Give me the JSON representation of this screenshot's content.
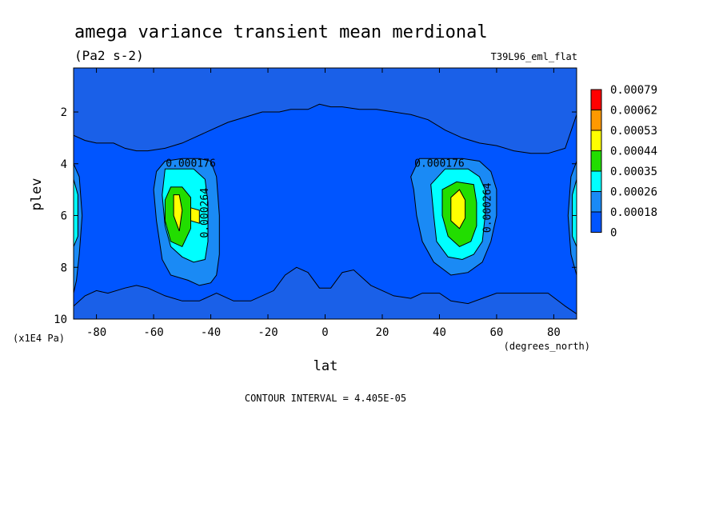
{
  "header": {
    "title": "amega variance transient mean merdional",
    "units": "(Pa2 s-2)",
    "experiment": "T39L96_eml_flat"
  },
  "footer": {
    "contour_interval": "CONTOUR INTERVAL = 4.405E-05"
  },
  "colors": {
    "background_fill": "#1a60e8",
    "level_colors": [
      "#0055ff",
      "#1a8af5",
      "#00ffff",
      "#22dd00",
      "#ffff00",
      "#ff9900",
      "#ff0000"
    ]
  },
  "chart_data": {
    "type": "heatmap",
    "subtype": "filled-contour",
    "title": "amega variance transient mean merdional",
    "xlabel": "lat",
    "x_units": "(degrees_north)",
    "ylabel": "plev",
    "y_units": "(x1E4 Pa)",
    "xlim": [
      -88,
      88
    ],
    "ylim": [
      10,
      0.3
    ],
    "y_inverted": true,
    "xticks": [
      -80,
      -60,
      -40,
      -20,
      0,
      20,
      40,
      60,
      80
    ],
    "yticks": [
      2,
      4,
      6,
      8,
      10
    ],
    "colorbar": {
      "labels": [
        "0.00079",
        "0.00062",
        "0.00053",
        "0.00044",
        "0.00035",
        "0.00026",
        "0.00018",
        "0"
      ],
      "colors": [
        "#ff0000",
        "#ff9900",
        "#ffff00",
        "#22dd00",
        "#00ffff",
        "#1a8af5",
        "#0055ff"
      ]
    },
    "contour_labels": [
      {
        "text": "0.000176",
        "lat": -47,
        "plev": 4.0,
        "rotate": 0
      },
      {
        "text": "0.000264",
        "lat": -42,
        "plev": 5.9,
        "rotate": -90
      },
      {
        "text": "0.000176",
        "lat": 40,
        "plev": 4.0,
        "rotate": 0
      },
      {
        "text": "0.000264",
        "lat": 57,
        "plev": 5.7,
        "rotate": -90
      }
    ],
    "regions": [
      {
        "level": 0,
        "points": [
          [
            -88,
            2.9
          ],
          [
            -84,
            3.1
          ],
          [
            -80,
            3.2
          ],
          [
            -74,
            3.2
          ],
          [
            -70,
            3.4
          ],
          [
            -66,
            3.5
          ],
          [
            -62,
            3.5
          ],
          [
            -56,
            3.4
          ],
          [
            -50,
            3.2
          ],
          [
            -46,
            3.0
          ],
          [
            -40,
            2.7
          ],
          [
            -34,
            2.4
          ],
          [
            -28,
            2.2
          ],
          [
            -22,
            2.0
          ],
          [
            -16,
            2.0
          ],
          [
            -12,
            1.9
          ],
          [
            -6,
            1.9
          ],
          [
            -2,
            1.7
          ],
          [
            2,
            1.8
          ],
          [
            6,
            1.8
          ],
          [
            12,
            1.9
          ],
          [
            18,
            1.9
          ],
          [
            24,
            2.0
          ],
          [
            30,
            2.1
          ],
          [
            36,
            2.3
          ],
          [
            42,
            2.7
          ],
          [
            48,
            3.0
          ],
          [
            54,
            3.2
          ],
          [
            60,
            3.3
          ],
          [
            66,
            3.5
          ],
          [
            72,
            3.6
          ],
          [
            78,
            3.6
          ],
          [
            84,
            3.4
          ],
          [
            88,
            2.1
          ],
          [
            88,
            9.8
          ],
          [
            84,
            9.5
          ],
          [
            78,
            9.0
          ],
          [
            70,
            9.0
          ],
          [
            60,
            9.0
          ],
          [
            50,
            9.4
          ],
          [
            44,
            9.3
          ],
          [
            40,
            9.0
          ],
          [
            34,
            9.0
          ],
          [
            30,
            9.2
          ],
          [
            24,
            9.1
          ],
          [
            16,
            8.7
          ],
          [
            10,
            8.1
          ],
          [
            6,
            8.2
          ],
          [
            2,
            8.8
          ],
          [
            -2,
            8.8
          ],
          [
            -6,
            8.2
          ],
          [
            -10,
            8.0
          ],
          [
            -14,
            8.3
          ],
          [
            -18,
            8.9
          ],
          [
            -26,
            9.3
          ],
          [
            -32,
            9.3
          ],
          [
            -38,
            9.0
          ],
          [
            -44,
            9.3
          ],
          [
            -50,
            9.3
          ],
          [
            -56,
            9.1
          ],
          [
            -62,
            8.8
          ],
          [
            -66,
            8.7
          ],
          [
            -70,
            8.8
          ],
          [
            -76,
            9.0
          ],
          [
            -80,
            8.9
          ],
          [
            -84,
            9.1
          ],
          [
            -88,
            9.5
          ]
        ]
      },
      {
        "level": 1,
        "points": [
          [
            -56,
            3.9
          ],
          [
            -50,
            3.8
          ],
          [
            -44,
            3.8
          ],
          [
            -40,
            3.9
          ],
          [
            -38,
            4.5
          ],
          [
            -37,
            6.0
          ],
          [
            -37,
            7.5
          ],
          [
            -38,
            8.3
          ],
          [
            -40,
            8.6
          ],
          [
            -44,
            8.7
          ],
          [
            -48,
            8.5
          ],
          [
            -54,
            8.3
          ],
          [
            -57,
            7.7
          ],
          [
            -59,
            6.2
          ],
          [
            -60,
            5.0
          ],
          [
            -59,
            4.3
          ]
        ]
      },
      {
        "level": 2,
        "points": [
          [
            -56,
            4.2
          ],
          [
            -50,
            4.2
          ],
          [
            -46,
            4.2
          ],
          [
            -42,
            4.6
          ],
          [
            -41,
            5.5
          ],
          [
            -41,
            7.0
          ],
          [
            -42,
            7.7
          ],
          [
            -46,
            7.8
          ],
          [
            -50,
            7.6
          ],
          [
            -54,
            7.2
          ],
          [
            -56,
            6.4
          ],
          [
            -57,
            5.2
          ]
        ]
      },
      {
        "level": 3,
        "points": [
          [
            -54,
            4.9
          ],
          [
            -50,
            4.9
          ],
          [
            -47,
            5.3
          ],
          [
            -47,
            6.5
          ],
          [
            -50,
            7.2
          ],
          [
            -54,
            7.0
          ],
          [
            -56,
            6.2
          ],
          [
            -56,
            5.4
          ]
        ]
      },
      {
        "level": 4,
        "points": [
          [
            -53,
            5.2
          ],
          [
            -51,
            5.2
          ],
          [
            -50,
            5.8
          ],
          [
            -51,
            6.6
          ],
          [
            -53,
            6.0
          ]
        ]
      },
      {
        "level": 4,
        "points": [
          [
            -47,
            5.7
          ],
          [
            -44,
            5.8
          ],
          [
            -44,
            6.3
          ],
          [
            -47,
            6.2
          ]
        ]
      },
      {
        "level": 1,
        "points": [
          [
            30,
            4.5
          ],
          [
            33,
            3.8
          ],
          [
            40,
            3.8
          ],
          [
            48,
            3.8
          ],
          [
            54,
            3.9
          ],
          [
            58,
            4.3
          ],
          [
            60,
            5.0
          ],
          [
            60,
            6.0
          ],
          [
            58,
            7.0
          ],
          [
            55,
            7.8
          ],
          [
            50,
            8.2
          ],
          [
            44,
            8.3
          ],
          [
            38,
            7.8
          ],
          [
            34,
            7.0
          ],
          [
            32,
            6.0
          ],
          [
            31,
            5.0
          ]
        ]
      },
      {
        "level": 2,
        "points": [
          [
            37,
            4.8
          ],
          [
            42,
            4.2
          ],
          [
            50,
            4.2
          ],
          [
            54,
            4.5
          ],
          [
            56,
            5.0
          ],
          [
            56,
            6.0
          ],
          [
            55,
            7.0
          ],
          [
            52,
            7.5
          ],
          [
            48,
            7.7
          ],
          [
            43,
            7.6
          ],
          [
            39,
            7.0
          ],
          [
            38,
            6.0
          ]
        ]
      },
      {
        "level": 3,
        "points": [
          [
            41,
            5.0
          ],
          [
            46,
            4.7
          ],
          [
            52,
            4.8
          ],
          [
            53,
            5.5
          ],
          [
            53,
            6.4
          ],
          [
            51,
            7.0
          ],
          [
            47,
            7.2
          ],
          [
            43,
            6.8
          ],
          [
            41,
            6.0
          ]
        ]
      },
      {
        "level": 4,
        "points": [
          [
            44,
            5.3
          ],
          [
            47,
            5.0
          ],
          [
            49,
            5.4
          ],
          [
            49,
            6.1
          ],
          [
            47,
            6.5
          ],
          [
            44,
            6.2
          ]
        ]
      },
      {
        "level": 1,
        "points": [
          [
            -88,
            4.0
          ],
          [
            -86,
            4.5
          ],
          [
            -85,
            6.0
          ],
          [
            -86,
            7.5
          ],
          [
            -87,
            8.5
          ],
          [
            -88,
            9.0
          ]
        ]
      },
      {
        "level": 2,
        "points": [
          [
            -88,
            4.6
          ],
          [
            -86.5,
            5.2
          ],
          [
            -86.5,
            6.0
          ],
          [
            -86.5,
            6.8
          ],
          [
            -88,
            7.2
          ]
        ]
      },
      {
        "level": 1,
        "points": [
          [
            88,
            3.9
          ],
          [
            86,
            4.5
          ],
          [
            85,
            6.0
          ],
          [
            86,
            7.5
          ],
          [
            88,
            8.3
          ]
        ]
      },
      {
        "level": 2,
        "points": [
          [
            88,
            4.6
          ],
          [
            86.5,
            5.2
          ],
          [
            86.5,
            6.0
          ],
          [
            86.5,
            6.8
          ],
          [
            88,
            7.2
          ]
        ]
      }
    ]
  }
}
